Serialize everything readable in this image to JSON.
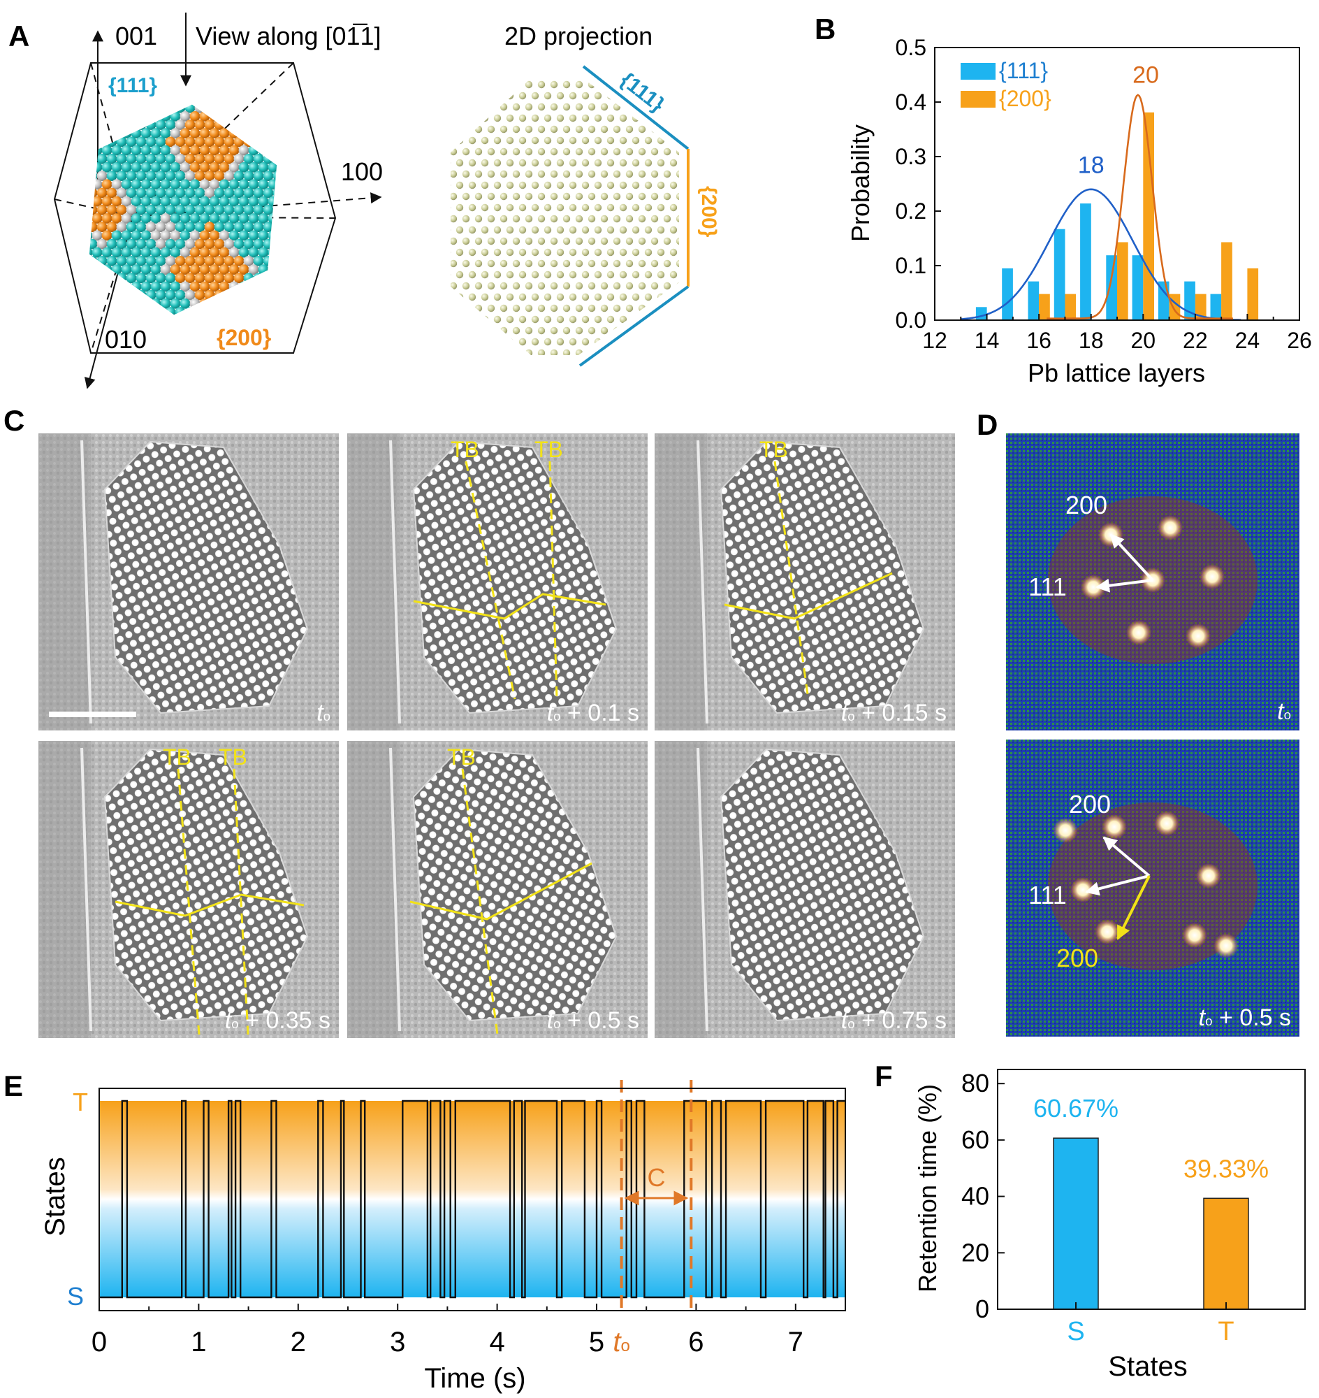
{
  "panel_letters": {
    "a": "A",
    "b": "B",
    "c": "C",
    "d": "D",
    "e": "E",
    "f": "F"
  },
  "colors": {
    "s_state": "#1eb4f0",
    "t_state": "#f7a11a",
    "fit_111": "#2060c8",
    "fit_200": "#d86a1c",
    "facet_teal": "#1fb9b5",
    "facet_orange": "#f08a1a",
    "marker_dash": "#e07828",
    "tb_yellow": "#f2e218"
  },
  "panel_a": {
    "axis_001": "001",
    "view_along": "View along [01̅1]",
    "axis_100": "100",
    "axis_010": "010",
    "facet_111": "{111}",
    "facet_200": "{200}",
    "proj_title": "2D projection",
    "proj_111": "{111}",
    "proj_200": "{200}"
  },
  "chart_data": [
    {
      "panel": "B",
      "type": "bar",
      "xlabel": "Pb lattice layers",
      "ylabel": "Probability",
      "xlim": [
        12,
        26
      ],
      "ylim": [
        0,
        0.5
      ],
      "xticks": [
        12,
        14,
        16,
        18,
        20,
        22,
        24,
        26
      ],
      "yticks": [
        "0.0",
        "0.1",
        "0.2",
        "0.3",
        "0.4",
        "0.5"
      ],
      "legend_position": "top-left",
      "series": [
        {
          "name": "{111}",
          "color": "#1eb4f0",
          "x": [
            14,
            15,
            16,
            17,
            18,
            19,
            20,
            21,
            22,
            23
          ],
          "values": [
            0.024,
            0.095,
            0.071,
            0.167,
            0.214,
            0.119,
            0.119,
            0.071,
            0.071,
            0.048
          ]
        },
        {
          "name": "{200}",
          "color": "#f7a11a",
          "x": [
            16,
            17,
            19,
            20,
            21,
            22,
            23,
            24
          ],
          "values": [
            0.048,
            0.048,
            0.143,
            0.381,
            0.048,
            0.048,
            0.143,
            0.095
          ]
        }
      ],
      "fits": [
        {
          "series": "{111}",
          "center": 18,
          "sigma": 1.6,
          "amplitude": 0.24,
          "color": "#2060c8",
          "peak_label": "18",
          "range": [
            13,
            23.8
          ]
        },
        {
          "series": "{200}",
          "center": 19.8,
          "sigma": 0.55,
          "amplitude": 0.41,
          "baseline": 0.003,
          "color": "#d86a1c",
          "peak_label": "20",
          "range": [
            16.3,
            23.5
          ]
        }
      ]
    },
    {
      "panel": "E",
      "type": "line",
      "xlabel": "Time (s)",
      "ylabel": "States",
      "xlim": [
        0,
        7.5
      ],
      "xticks": [
        "0",
        "1",
        "2",
        "3",
        "4",
        "5",
        "6",
        "7"
      ],
      "y_states": [
        "S",
        "T"
      ],
      "initial_state": "S",
      "switch_times": [
        0.23,
        0.28,
        0.83,
        0.87,
        1.05,
        1.1,
        1.3,
        1.33,
        1.37,
        1.42,
        1.73,
        1.78,
        2.2,
        2.25,
        2.43,
        2.46,
        2.63,
        2.67,
        3.05,
        3.3,
        3.33,
        3.43,
        3.47,
        3.53,
        3.58,
        4.13,
        4.17,
        4.25,
        4.28,
        4.6,
        4.65,
        4.88,
        5.0,
        5.05,
        5.3,
        5.35,
        5.4,
        5.48,
        5.88,
        6.1,
        6.16,
        6.25,
        6.3,
        6.65,
        6.7,
        7.08,
        7.12,
        7.28,
        7.3,
        7.38,
        7.42
      ],
      "marker_lines": [
        5.25,
        5.95
      ],
      "marker_t0": "t",
      "marker_t0_sub": "o",
      "bracket_label": "C"
    },
    {
      "panel": "F",
      "type": "bar",
      "xlabel": "States",
      "ylabel": "Retention time (%)",
      "ylim": [
        0,
        85
      ],
      "yticks": [
        "0",
        "20",
        "40",
        "60",
        "80"
      ],
      "categories": [
        "S",
        "T"
      ],
      "values": [
        60.67,
        39.33
      ],
      "value_labels": [
        "60.67%",
        "39.33%"
      ],
      "colors": [
        "#1eb4f0",
        "#f7a11a"
      ]
    }
  ],
  "panel_c": {
    "frames": [
      {
        "t": "t",
        "sub": "o",
        "suffix": "",
        "tb": []
      },
      {
        "t": "t",
        "sub": "o",
        "suffix": " + 0.1 s",
        "tb": [
          "TB",
          "TB"
        ]
      },
      {
        "t": "t",
        "sub": "o",
        "suffix": " + 0.15 s",
        "tb": [
          "TB"
        ]
      },
      {
        "t": "t",
        "sub": "o",
        "suffix": " + 0.35 s",
        "tb": [
          "TB",
          "TB"
        ]
      },
      {
        "t": "t",
        "sub": "o",
        "suffix": " + 0.5 s",
        "tb": [
          "TB"
        ]
      },
      {
        "t": "t",
        "sub": "o",
        "suffix": " + 0.75 s",
        "tb": []
      }
    ]
  },
  "panel_d": {
    "top": {
      "spot_200": "200",
      "spot_111": "111",
      "t": "t",
      "sub": "o",
      "suffix": ""
    },
    "bottom": {
      "spot_200": "200",
      "spot_111": "111",
      "spot_200_twin": "200",
      "t": "t",
      "sub": "o",
      "suffix": " + 0.5 s"
    }
  }
}
